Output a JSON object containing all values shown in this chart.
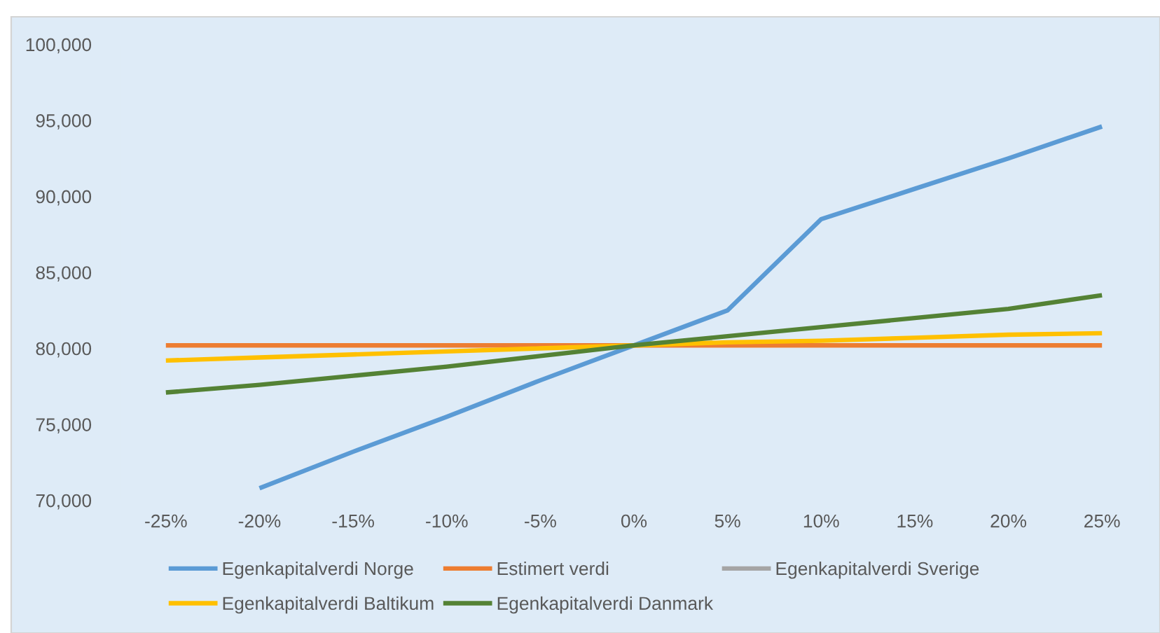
{
  "chart_data": {
    "type": "line",
    "categories": [
      "-25%",
      "-20%",
      "-15%",
      "-10%",
      "-5%",
      "0%",
      "5%",
      "10%",
      "15%",
      "20%",
      "25%"
    ],
    "series": [
      {
        "name": "Egenkapitalverdi Norge",
        "color": "#5b9bd5",
        "values": [
          null,
          70800,
          73200,
          75500,
          77900,
          80200,
          82500,
          88500,
          90500,
          92500,
          94600
        ]
      },
      {
        "name": "Estimert verdi",
        "color": "#ed7d31",
        "values": [
          80200,
          80200,
          80200,
          80200,
          80200,
          80200,
          80200,
          80200,
          80200,
          80200,
          80200
        ]
      },
      {
        "name": "Egenkapitalverdi Sverige",
        "color": "#a5a5a5",
        "values": [
          null,
          null,
          null,
          null,
          null,
          null,
          null,
          null,
          null,
          null,
          null
        ]
      },
      {
        "name": "Egenkapitalverdi Baltikum",
        "color": "#ffc000",
        "values": [
          79200,
          79400,
          79600,
          79800,
          80000,
          80200,
          80400,
          80500,
          80700,
          80900,
          81000
        ]
      },
      {
        "name": "Egenkapitalverdi Danmark",
        "color": "#548235",
        "values": [
          77100,
          77600,
          78200,
          78800,
          79500,
          80200,
          80800,
          81400,
          82000,
          82600,
          83500
        ]
      }
    ],
    "ylim": [
      70000,
      100000
    ],
    "yticks": [
      {
        "value": 70000,
        "label": "70,000"
      },
      {
        "value": 75000,
        "label": "75,000"
      },
      {
        "value": 80000,
        "label": "80,000"
      },
      {
        "value": 85000,
        "label": "85,000"
      },
      {
        "value": 90000,
        "label": "90,000"
      },
      {
        "value": 95000,
        "label": "95,000"
      },
      {
        "value": 100000,
        "label": "100,000"
      }
    ],
    "legend": "bottom"
  }
}
